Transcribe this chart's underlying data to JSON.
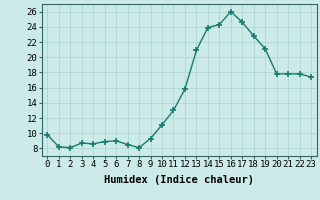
{
  "x": [
    0,
    1,
    2,
    3,
    4,
    5,
    6,
    7,
    8,
    9,
    10,
    11,
    12,
    13,
    14,
    15,
    16,
    17,
    18,
    19,
    20,
    21,
    22,
    23
  ],
  "y": [
    9.8,
    8.2,
    8.1,
    8.7,
    8.6,
    8.9,
    9.0,
    8.5,
    8.1,
    9.3,
    11.1,
    13.0,
    15.8,
    20.9,
    23.9,
    24.3,
    26.0,
    24.6,
    22.8,
    21.1,
    17.8,
    17.8,
    17.8,
    17.4
  ],
  "line_color": "#1a7a6e",
  "marker": "+",
  "marker_size": 5,
  "bg_color": "#cceae7",
  "grid_color": "#aad4d0",
  "xlabel": "Humidex (Indice chaleur)",
  "xlim": [
    -0.5,
    23.5
  ],
  "ylim": [
    7,
    27
  ],
  "yticks": [
    8,
    10,
    12,
    14,
    16,
    18,
    20,
    22,
    24,
    26
  ],
  "xticks": [
    0,
    1,
    2,
    3,
    4,
    5,
    6,
    7,
    8,
    9,
    10,
    11,
    12,
    13,
    14,
    15,
    16,
    17,
    18,
    19,
    20,
    21,
    22,
    23
  ],
  "xlabel_fontsize": 7.5,
  "tick_fontsize": 6.5,
  "spine_color": "#336666"
}
